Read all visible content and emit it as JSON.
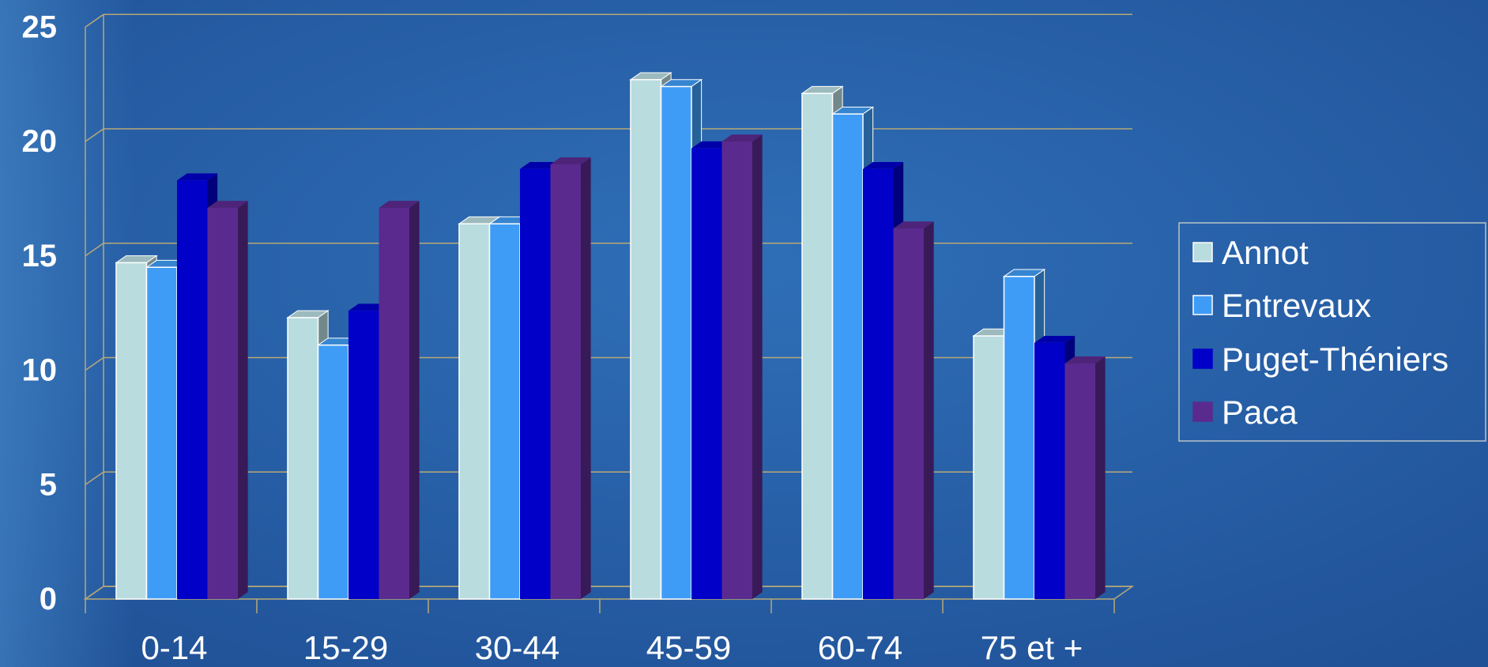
{
  "chart_data": {
    "type": "bar",
    "categories": [
      "0-14",
      "15-29",
      "30-44",
      "45-59",
      "60-74",
      "75 et +"
    ],
    "series": [
      {
        "name": "Annot",
        "values": [
          14.7,
          12.3,
          16.4,
          22.7,
          22.1,
          11.5
        ],
        "color": "#b9dcdf"
      },
      {
        "name": "Entrevaux",
        "values": [
          14.5,
          11.1,
          16.4,
          22.4,
          21.2,
          14.1
        ],
        "color": "#3f9cf6"
      },
      {
        "name": "Puget-Théniers",
        "values": [
          18.3,
          12.6,
          18.8,
          19.7,
          18.8,
          11.2
        ],
        "color": "#0000c8"
      },
      {
        "name": "Paca",
        "values": [
          17.1,
          17.1,
          19.0,
          20.0,
          16.2,
          10.3
        ],
        "color": "#5a2a8e"
      }
    ],
    "yticks": [
      "0",
      "5",
      "10",
      "15",
      "20",
      "25"
    ],
    "ylim": [
      0,
      25
    ],
    "grid": true,
    "legend_position": "right",
    "colors": {
      "background": "#2a63a8",
      "grid": "#b8a877",
      "text": "#ffffff"
    }
  }
}
